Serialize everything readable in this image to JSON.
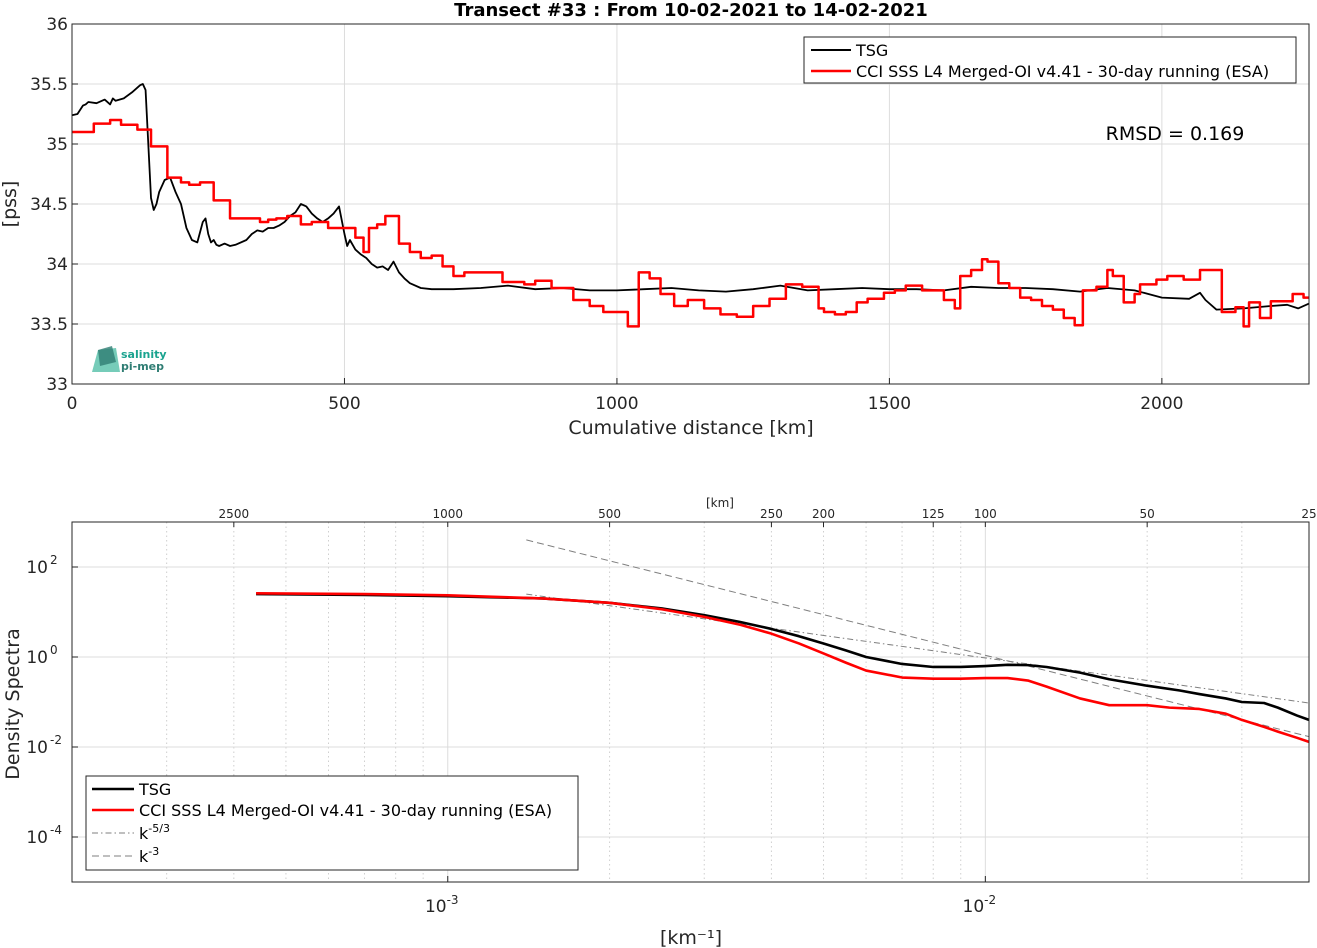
{
  "logo": {
    "line1": "salinity",
    "line2": "pi-mep",
    "colors": [
      "#1aa38f",
      "#2f7d73",
      "#6fc9b5"
    ]
  },
  "top_annotation": "RMSD = 0.169",
  "colors": {
    "tsg": "#000000",
    "cci": "#ff0000",
    "fit": "#7f7f7f"
  },
  "chart_data": [
    {
      "type": "line",
      "title": "Transect #33 : From 10-02-2021 to 14-02-2021",
      "xlabel": "Cumulative distance [km]",
      "ylabel": "[pss]",
      "xlim": [
        0,
        2270
      ],
      "ylim": [
        33,
        36
      ],
      "xticks": [
        0,
        500,
        1000,
        1500,
        2000
      ],
      "xtick_labels": [
        "0",
        "500",
        "1000",
        "1500",
        "2000"
      ],
      "yticks": [
        33,
        33.5,
        34,
        34.5,
        35,
        35.5,
        36
      ],
      "ytick_labels": [
        "33",
        "33.5",
        "34",
        "34.5",
        "35",
        "35.5",
        "36"
      ],
      "grid": true,
      "legend_position": "top-right",
      "series": [
        {
          "name": "TSG",
          "color": "#000000",
          "step": false,
          "x": [
            0,
            10,
            20,
            25,
            30,
            45,
            60,
            70,
            75,
            80,
            95,
            110,
            125,
            130,
            135,
            140,
            145,
            150,
            155,
            160,
            170,
            180,
            190,
            200,
            210,
            220,
            230,
            240,
            245,
            250,
            255,
            260,
            265,
            270,
            280,
            290,
            300,
            320,
            330,
            340,
            350,
            360,
            370,
            380,
            390,
            400,
            410,
            420,
            430,
            440,
            450,
            460,
            470,
            480,
            490,
            500,
            505,
            510,
            520,
            530,
            540,
            550,
            560,
            570,
            580,
            590,
            600,
            610,
            620,
            640,
            660,
            680,
            700,
            750,
            800,
            850,
            900,
            950,
            1000,
            1050,
            1100,
            1150,
            1200,
            1250,
            1300,
            1350,
            1400,
            1450,
            1500,
            1550,
            1600,
            1650,
            1700,
            1750,
            1800,
            1850,
            1900,
            1950,
            2000,
            2050,
            2070,
            2080,
            2100,
            2150,
            2200,
            2230,
            2250,
            2270
          ],
          "y": [
            35.24,
            35.25,
            35.32,
            35.33,
            35.35,
            35.34,
            35.37,
            35.33,
            35.38,
            35.36,
            35.38,
            35.43,
            35.49,
            35.5,
            35.45,
            35.0,
            34.55,
            34.45,
            34.5,
            34.6,
            34.7,
            34.72,
            34.6,
            34.5,
            34.3,
            34.2,
            34.18,
            34.35,
            34.38,
            34.25,
            34.18,
            34.2,
            34.16,
            34.15,
            34.17,
            34.15,
            34.16,
            34.2,
            34.25,
            34.28,
            34.27,
            34.3,
            34.3,
            34.32,
            34.35,
            34.4,
            34.43,
            34.5,
            34.48,
            34.42,
            34.38,
            34.35,
            34.38,
            34.42,
            34.48,
            34.25,
            34.15,
            34.2,
            34.12,
            34.08,
            34.05,
            34.0,
            33.97,
            33.98,
            33.95,
            34.02,
            33.93,
            33.88,
            33.84,
            33.8,
            33.79,
            33.79,
            33.79,
            33.8,
            33.82,
            33.79,
            33.8,
            33.78,
            33.78,
            33.79,
            33.8,
            33.78,
            33.77,
            33.79,
            33.82,
            33.78,
            33.79,
            33.8,
            33.79,
            33.79,
            33.78,
            33.81,
            33.8,
            33.8,
            33.79,
            33.77,
            33.8,
            33.78,
            33.72,
            33.71,
            33.76,
            33.7,
            33.62,
            33.63,
            33.65,
            33.66,
            33.63,
            33.67
          ]
        },
        {
          "name": "CCI SSS L4 Merged-OI v4.41 - 30-day running (ESA)",
          "color": "#ff0000",
          "step": true,
          "x": [
            0,
            40,
            70,
            90,
            120,
            145,
            175,
            200,
            215,
            235,
            260,
            290,
            320,
            345,
            360,
            375,
            395,
            420,
            440,
            470,
            500,
            520,
            535,
            545,
            560,
            575,
            600,
            620,
            640,
            660,
            680,
            700,
            720,
            750,
            790,
            830,
            850,
            880,
            920,
            950,
            975,
            1000,
            1020,
            1040,
            1060,
            1080,
            1105,
            1130,
            1160,
            1190,
            1220,
            1250,
            1280,
            1310,
            1340,
            1370,
            1380,
            1400,
            1420,
            1440,
            1460,
            1490,
            1510,
            1530,
            1560,
            1600,
            1620,
            1630,
            1650,
            1670,
            1680,
            1700,
            1720,
            1740,
            1760,
            1780,
            1800,
            1820,
            1840,
            1855,
            1880,
            1900,
            1910,
            1930,
            1950,
            1960,
            1990,
            2010,
            2040,
            2070,
            2090,
            2110,
            2135,
            2150,
            2160,
            2180,
            2200,
            2210,
            2240,
            2260,
            2270
          ],
          "y": [
            35.1,
            35.17,
            35.2,
            35.16,
            35.12,
            34.98,
            34.72,
            34.68,
            34.66,
            34.68,
            34.53,
            34.38,
            34.38,
            34.35,
            34.37,
            34.38,
            34.4,
            34.33,
            34.35,
            34.3,
            34.3,
            34.22,
            34.1,
            34.3,
            34.33,
            34.4,
            34.17,
            34.1,
            34.05,
            34.07,
            33.98,
            33.9,
            33.93,
            33.93,
            33.85,
            33.83,
            33.86,
            33.8,
            33.7,
            33.65,
            33.6,
            33.6,
            33.48,
            33.93,
            33.88,
            33.75,
            33.65,
            33.7,
            33.63,
            33.58,
            33.56,
            33.65,
            33.71,
            33.83,
            33.81,
            33.63,
            33.6,
            33.58,
            33.6,
            33.68,
            33.71,
            33.76,
            33.78,
            33.82,
            33.78,
            33.7,
            33.63,
            33.9,
            33.95,
            34.04,
            34.02,
            33.84,
            33.8,
            33.72,
            33.7,
            33.65,
            33.62,
            33.55,
            33.49,
            33.78,
            33.81,
            33.95,
            33.9,
            33.68,
            33.75,
            33.83,
            33.87,
            33.9,
            33.87,
            33.95,
            33.95,
            33.6,
            33.64,
            33.48,
            33.68,
            33.55,
            33.69,
            33.69,
            33.75,
            33.72,
            33.72
          ]
        }
      ]
    },
    {
      "type": "line",
      "title": "",
      "xlabel": "[km⁻¹]",
      "ylabel": "Density Spectra",
      "top_axis_label": "[km]",
      "xscale": "log",
      "yscale": "log",
      "xlim": [
        0.0002,
        0.04
      ],
      "ylim": [
        1e-05,
        1000
      ],
      "xticks": [
        0.001,
        0.01
      ],
      "xtick_labels": [
        {
          "base": "10",
          "exp": "-3"
        },
        {
          "base": "10",
          "exp": "-2"
        }
      ],
      "yticks": [
        0.0001,
        0.01,
        1,
        100
      ],
      "ytick_labels": [
        {
          "base": "10",
          "exp": "-4"
        },
        {
          "base": "10",
          "exp": "-2"
        },
        {
          "base": "10",
          "exp": "0"
        },
        {
          "base": "10",
          "exp": "2"
        }
      ],
      "top_ticks_km": [
        2500,
        1000,
        500,
        250,
        200,
        125,
        100,
        50,
        25
      ],
      "top_tick_labels": [
        "2500",
        "1000",
        "500",
        "250",
        "200",
        "125",
        "100",
        "50",
        "25"
      ],
      "grid": true,
      "legend_position": "bottom-left",
      "series": [
        {
          "name": "TSG",
          "color": "#000000",
          "dash": "solid",
          "x": [
            0.00044,
            0.0007,
            0.001,
            0.0015,
            0.002,
            0.0025,
            0.003,
            0.0035,
            0.004,
            0.0045,
            0.005,
            0.0055,
            0.006,
            0.007,
            0.008,
            0.009,
            0.01,
            0.011,
            0.012,
            0.013,
            0.015,
            0.017,
            0.02,
            0.023,
            0.025,
            0.028,
            0.03,
            0.033,
            0.035,
            0.038,
            0.04
          ],
          "y": [
            25,
            24,
            22.5,
            20,
            16,
            12,
            8.5,
            6,
            4.2,
            2.9,
            2.0,
            1.4,
            1.0,
            0.7,
            0.6,
            0.6,
            0.63,
            0.67,
            0.66,
            0.6,
            0.45,
            0.32,
            0.23,
            0.18,
            0.15,
            0.12,
            0.1,
            0.095,
            0.075,
            0.05,
            0.04
          ]
        },
        {
          "name": "CCI SSS L4 Merged-OI v4.41 - 30-day running (ESA)",
          "color": "#ff0000",
          "dash": "solid",
          "x": [
            0.00044,
            0.0007,
            0.001,
            0.0015,
            0.002,
            0.0025,
            0.003,
            0.0035,
            0.004,
            0.0045,
            0.005,
            0.0055,
            0.006,
            0.007,
            0.008,
            0.009,
            0.01,
            0.011,
            0.012,
            0.013,
            0.015,
            0.017,
            0.02,
            0.022,
            0.025,
            0.028,
            0.03,
            0.033,
            0.035,
            0.038,
            0.04
          ],
          "y": [
            26,
            25,
            23.5,
            20,
            16,
            11.5,
            7.8,
            5.2,
            3.3,
            2.0,
            1.2,
            0.75,
            0.5,
            0.35,
            0.33,
            0.33,
            0.34,
            0.34,
            0.3,
            0.22,
            0.12,
            0.085,
            0.085,
            0.075,
            0.07,
            0.055,
            0.04,
            0.028,
            0.022,
            0.016,
            0.013
          ]
        },
        {
          "name": "k",
          "name_sup": "-5/3",
          "color": "#7f7f7f",
          "dash": "dashdot",
          "x": [
            0.0014,
            0.04
          ],
          "y": [
            25,
            0.095
          ]
        },
        {
          "name": "k",
          "name_sup": "-3",
          "color": "#7f7f7f",
          "dash": "dashed",
          "x": [
            0.0014,
            0.04
          ],
          "y": [
            400,
            0.017
          ]
        }
      ]
    }
  ]
}
